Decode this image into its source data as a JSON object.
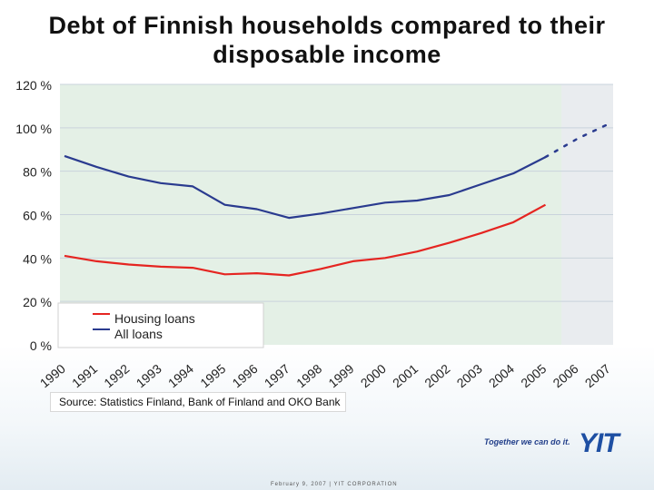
{
  "page": {
    "title": "Debt of Finnish households compared to their disposable income",
    "source": "Source: Statistics Finland, Bank of Finland and OKO Bank",
    "slogan": "Together we can do it.",
    "brand": "YIT",
    "footer": "February 9, 2007   |   YIT CORPORATION"
  },
  "chart_data": {
    "type": "line",
    "title": "Debt of Finnish households compared to their disposable income",
    "xlabel": "",
    "ylabel": "",
    "ylim": [
      0,
      120
    ],
    "y_ticks": [
      0,
      20,
      40,
      60,
      80,
      100,
      120
    ],
    "y_tick_labels": [
      "0 %",
      "20 %",
      "40 %",
      "60 %",
      "80 %",
      "100 %",
      "120 %"
    ],
    "categories": [
      "1990",
      "1991",
      "1992",
      "1993",
      "1994",
      "1995",
      "1996",
      "1997",
      "1998",
      "1999",
      "2000",
      "2001",
      "2002",
      "2003",
      "2004",
      "2005",
      "2006",
      "2007"
    ],
    "grid": true,
    "legend_position": "bottom-left",
    "shaded_region": {
      "from": "1990",
      "to": "2005",
      "color": "#e4f0e6"
    },
    "series": [
      {
        "name": "Housing loans",
        "color": "#e52521",
        "values": [
          41,
          38.5,
          37,
          36,
          35.5,
          32.5,
          33,
          32,
          35,
          38.5,
          40,
          43,
          47,
          51.5,
          56.5,
          64.5,
          null,
          null
        ],
        "projected": [
          null,
          null,
          null,
          null,
          null,
          null,
          null,
          null,
          null,
          null,
          null,
          null,
          null,
          null,
          null,
          null,
          null,
          null
        ]
      },
      {
        "name": "All loans",
        "color": "#2a3b8f",
        "values": [
          87,
          82,
          77.5,
          74.5,
          73,
          64.5,
          62.5,
          58.5,
          60.5,
          63,
          65.5,
          66.5,
          69,
          74,
          79,
          86.5,
          null,
          null
        ],
        "projected": [
          null,
          null,
          null,
          null,
          null,
          null,
          null,
          null,
          null,
          null,
          null,
          null,
          null,
          null,
          null,
          86.5,
          95,
          102
        ]
      }
    ]
  }
}
